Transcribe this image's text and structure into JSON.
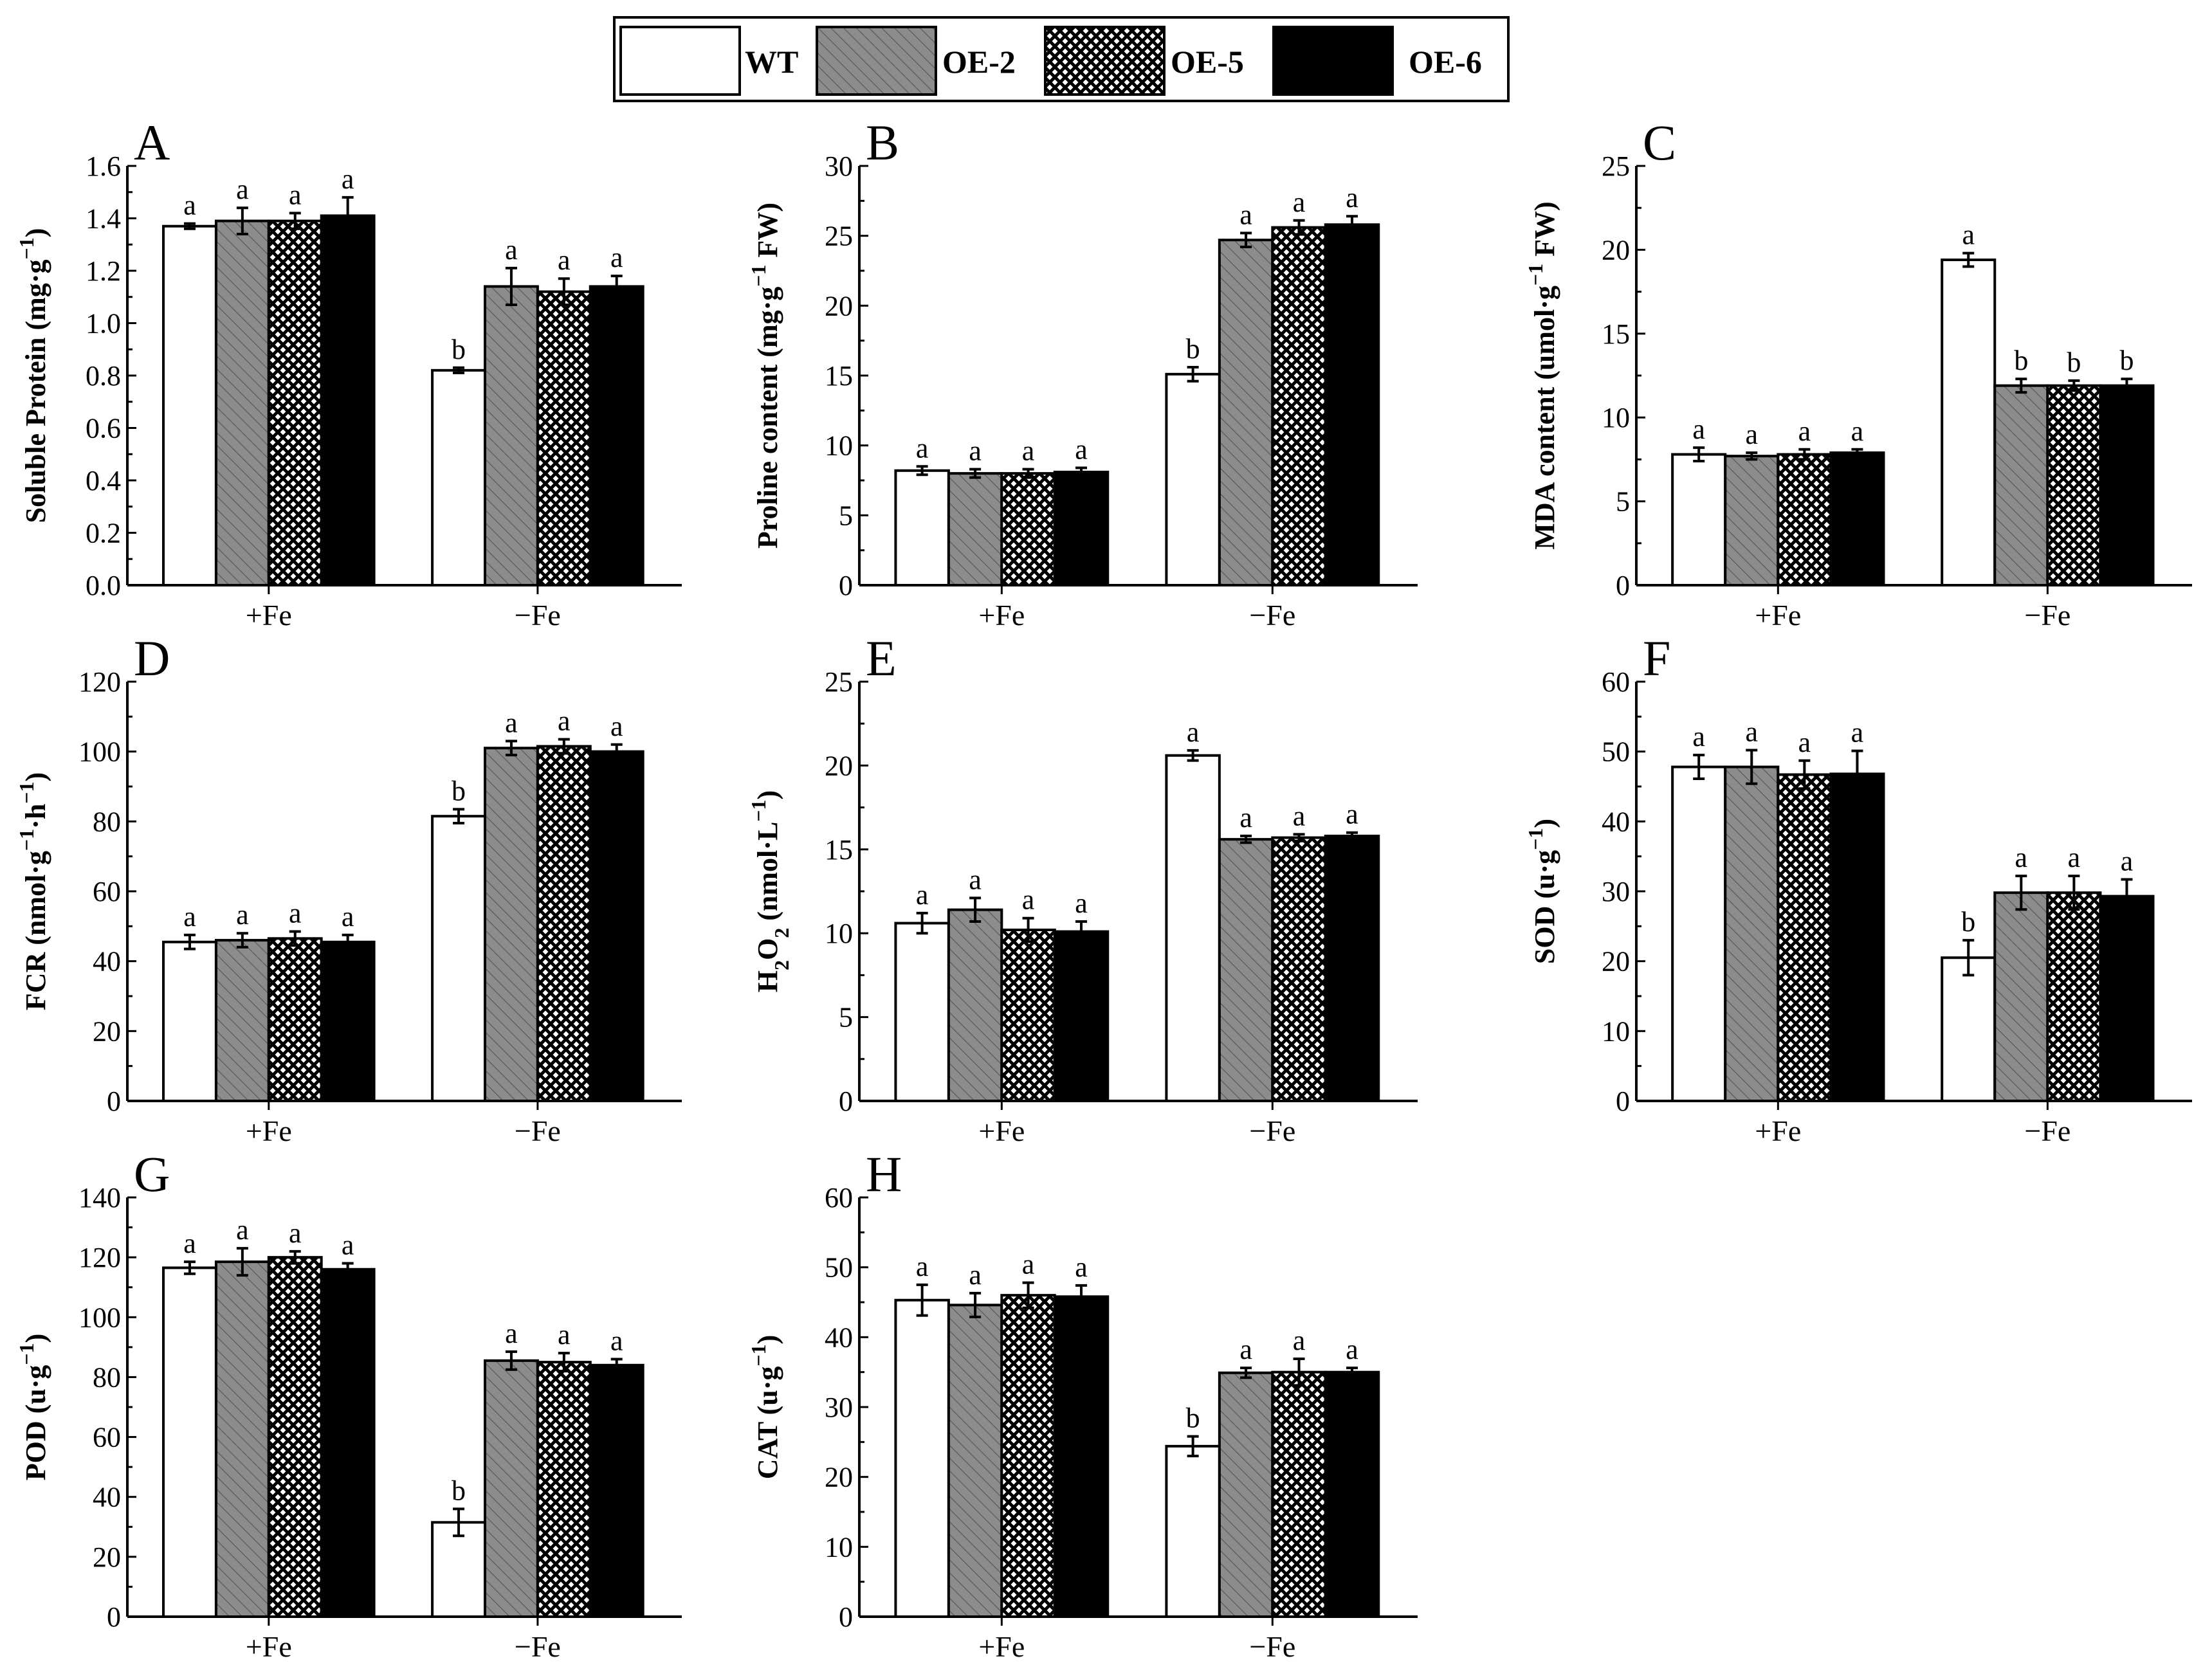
{
  "legend": [
    {
      "name": "WT",
      "pattern": "white"
    },
    {
      "name": "OE-2",
      "pattern": "hatch"
    },
    {
      "name": "OE-5",
      "pattern": "cross"
    },
    {
      "name": "OE-6",
      "pattern": "black"
    }
  ],
  "colors": {
    "axis": "#000000",
    "hatch_fill": "#8c8c8c",
    "solid": "#000000",
    "white": "#ffffff"
  },
  "chart_data": [
    {
      "type": "bar",
      "panel": "A",
      "ylabel": {
        "pre": "Soluble Protein (mg·g",
        "sup": "−1",
        "post": ")"
      },
      "categories": [
        "+Fe",
        "−Fe"
      ],
      "ylim": [
        0,
        1.6
      ],
      "yticks": [
        0.0,
        0.2,
        0.4,
        0.6,
        0.8,
        1.0,
        1.2,
        1.4,
        1.6
      ],
      "yticklabels": [
        "0.0",
        "0.2",
        "0.4",
        "0.6",
        "0.8",
        "1.0",
        "1.2",
        "1.4",
        "1.6"
      ],
      "series": [
        {
          "name": "WT",
          "values": [
            1.37,
            0.82
          ],
          "errors": [
            0.01,
            0.01
          ],
          "letters": [
            "a",
            "b"
          ]
        },
        {
          "name": "OE-2",
          "values": [
            1.39,
            1.14
          ],
          "errors": [
            0.05,
            0.07
          ],
          "letters": [
            "a",
            "a"
          ]
        },
        {
          "name": "OE-5",
          "values": [
            1.39,
            1.12
          ],
          "errors": [
            0.03,
            0.05
          ],
          "letters": [
            "a",
            "a"
          ]
        },
        {
          "name": "OE-6",
          "values": [
            1.41,
            1.14
          ],
          "errors": [
            0.07,
            0.04
          ],
          "letters": [
            "a",
            "a"
          ]
        }
      ]
    },
    {
      "type": "bar",
      "panel": "B",
      "ylabel": {
        "pre": "Proline content (mg·g",
        "sup": "−1",
        "post": " FW)"
      },
      "categories": [
        "+Fe",
        "−Fe"
      ],
      "ylim": [
        0,
        30
      ],
      "yticks": [
        0,
        5,
        10,
        15,
        20,
        25,
        30
      ],
      "yticklabels": [
        "0",
        "5",
        "10",
        "15",
        "20",
        "25",
        "30"
      ],
      "series": [
        {
          "name": "WT",
          "values": [
            8.2,
            15.1
          ],
          "errors": [
            0.3,
            0.5
          ],
          "letters": [
            "a",
            "b"
          ]
        },
        {
          "name": "OE-2",
          "values": [
            8.0,
            24.7
          ],
          "errors": [
            0.3,
            0.5
          ],
          "letters": [
            "a",
            "a"
          ]
        },
        {
          "name": "OE-5",
          "values": [
            8.0,
            25.6
          ],
          "errors": [
            0.3,
            0.5
          ],
          "letters": [
            "a",
            "a"
          ]
        },
        {
          "name": "OE-6",
          "values": [
            8.1,
            25.8
          ],
          "errors": [
            0.3,
            0.6
          ],
          "letters": [
            "a",
            "a"
          ]
        }
      ]
    },
    {
      "type": "bar",
      "panel": "C",
      "ylabel": {
        "pre": "MDA content (umol·g",
        "sup": "−1",
        "post": " FW)"
      },
      "categories": [
        "+Fe",
        "−Fe"
      ],
      "ylim": [
        0,
        25
      ],
      "yticks": [
        0,
        5,
        10,
        15,
        20,
        25
      ],
      "yticklabels": [
        "0",
        "5",
        "10",
        "15",
        "20",
        "25"
      ],
      "series": [
        {
          "name": "WT",
          "values": [
            7.8,
            19.4
          ],
          "errors": [
            0.4,
            0.4
          ],
          "letters": [
            "a",
            "a"
          ]
        },
        {
          "name": "OE-2",
          "values": [
            7.7,
            11.9
          ],
          "errors": [
            0.2,
            0.4
          ],
          "letters": [
            "a",
            "b"
          ]
        },
        {
          "name": "OE-5",
          "values": [
            7.8,
            11.9
          ],
          "errors": [
            0.3,
            0.3
          ],
          "letters": [
            "a",
            "b"
          ]
        },
        {
          "name": "OE-6",
          "values": [
            7.9,
            11.9
          ],
          "errors": [
            0.2,
            0.4
          ],
          "letters": [
            "a",
            "b"
          ]
        }
      ]
    },
    {
      "type": "bar",
      "panel": "D",
      "ylabel": {
        "pre": "FCR (nmol·g",
        "sup": "−1",
        "mid": "·h",
        "sup2": "−1",
        "post": ")"
      },
      "categories": [
        "+Fe",
        "−Fe"
      ],
      "ylim": [
        0,
        120
      ],
      "yticks": [
        0,
        20,
        40,
        60,
        80,
        100,
        120
      ],
      "yticklabels": [
        "0",
        "20",
        "40",
        "60",
        "80",
        "100",
        "120"
      ],
      "series": [
        {
          "name": "WT",
          "values": [
            45.5,
            81.5
          ],
          "errors": [
            2.0,
            2.0
          ],
          "letters": [
            "a",
            "b"
          ]
        },
        {
          "name": "OE-2",
          "values": [
            46.0,
            101.0
          ],
          "errors": [
            2.0,
            2.0
          ],
          "letters": [
            "a",
            "a"
          ]
        },
        {
          "name": "OE-5",
          "values": [
            46.5,
            101.5
          ],
          "errors": [
            2.0,
            2.0
          ],
          "letters": [
            "a",
            "a"
          ]
        },
        {
          "name": "OE-6",
          "values": [
            45.5,
            100.0
          ],
          "errors": [
            2.0,
            2.0
          ],
          "letters": [
            "a",
            "a"
          ]
        }
      ]
    },
    {
      "type": "bar",
      "panel": "E",
      "ylabel": {
        "pre": "H",
        "sub": "2",
        "mid": "O",
        "sub2": "2",
        "post": " (nmol·L",
        "sup": "−1",
        "post2": ")"
      },
      "categories": [
        "+Fe",
        "−Fe"
      ],
      "ylim": [
        0,
        25
      ],
      "yticks": [
        0,
        5,
        10,
        15,
        20,
        25
      ],
      "yticklabels": [
        "0",
        "5",
        "10",
        "15",
        "20",
        "25"
      ],
      "series": [
        {
          "name": "WT",
          "values": [
            10.6,
            20.6
          ],
          "errors": [
            0.6,
            0.3
          ],
          "letters": [
            "a",
            "a"
          ]
        },
        {
          "name": "OE-2",
          "values": [
            11.4,
            15.6
          ],
          "errors": [
            0.7,
            0.2
          ],
          "letters": [
            "a",
            "a"
          ]
        },
        {
          "name": "OE-5",
          "values": [
            10.2,
            15.7
          ],
          "errors": [
            0.7,
            0.2
          ],
          "letters": [
            "a",
            "a"
          ]
        },
        {
          "name": "OE-6",
          "values": [
            10.1,
            15.8
          ],
          "errors": [
            0.6,
            0.2
          ],
          "letters": [
            "a",
            "a"
          ]
        }
      ]
    },
    {
      "type": "bar",
      "panel": "F",
      "ylabel": {
        "pre": "SOD (u·g",
        "sup": "−1",
        "post": ")"
      },
      "categories": [
        "+Fe",
        "−Fe"
      ],
      "ylim": [
        0,
        60
      ],
      "yticks": [
        0,
        10,
        20,
        30,
        40,
        50,
        60
      ],
      "yticklabels": [
        "0",
        "10",
        "20",
        "30",
        "40",
        "50",
        "60"
      ],
      "series": [
        {
          "name": "WT",
          "values": [
            47.8,
            20.5
          ],
          "errors": [
            1.7,
            2.5
          ],
          "letters": [
            "a",
            "b"
          ]
        },
        {
          "name": "OE-2",
          "values": [
            47.8,
            29.8
          ],
          "errors": [
            2.4,
            2.4
          ],
          "letters": [
            "a",
            "a"
          ]
        },
        {
          "name": "OE-5",
          "values": [
            46.7,
            29.8
          ],
          "errors": [
            2.0,
            2.4
          ],
          "letters": [
            "a",
            "a"
          ]
        },
        {
          "name": "OE-6",
          "values": [
            46.8,
            29.3
          ],
          "errors": [
            3.3,
            2.4
          ],
          "letters": [
            "a",
            "a"
          ]
        }
      ]
    },
    {
      "type": "bar",
      "panel": "G",
      "ylabel": {
        "pre": "POD (u·g",
        "sup": "−1",
        "post": ")"
      },
      "categories": [
        "+Fe",
        "−Fe"
      ],
      "ylim": [
        0,
        140
      ],
      "yticks": [
        0,
        20,
        40,
        60,
        80,
        100,
        120,
        140
      ],
      "yticklabels": [
        "0",
        "20",
        "40",
        "60",
        "80",
        "100",
        "120",
        "140"
      ],
      "series": [
        {
          "name": "WT",
          "values": [
            116.5,
            31.5
          ],
          "errors": [
            2.0,
            4.5
          ],
          "letters": [
            "a",
            "b"
          ]
        },
        {
          "name": "OE-2",
          "values": [
            118.5,
            85.5
          ],
          "errors": [
            4.5,
            3.0
          ],
          "letters": [
            "a",
            "a"
          ]
        },
        {
          "name": "OE-5",
          "values": [
            120.0,
            85.0
          ],
          "errors": [
            2.0,
            3.0
          ],
          "letters": [
            "a",
            "a"
          ]
        },
        {
          "name": "OE-6",
          "values": [
            116.0,
            84.0
          ],
          "errors": [
            2.0,
            2.0
          ],
          "letters": [
            "a",
            "a"
          ]
        }
      ]
    },
    {
      "type": "bar",
      "panel": "H",
      "ylabel": {
        "pre": "CAT (u·g",
        "sup": "−1",
        "post": ")"
      },
      "categories": [
        "+Fe",
        "−Fe"
      ],
      "ylim": [
        0,
        60
      ],
      "yticks": [
        0,
        10,
        20,
        30,
        40,
        50,
        60
      ],
      "yticklabels": [
        "0",
        "10",
        "20",
        "30",
        "40",
        "50",
        "60"
      ],
      "series": [
        {
          "name": "WT",
          "values": [
            45.3,
            24.4
          ],
          "errors": [
            2.2,
            1.4
          ],
          "letters": [
            "a",
            "b"
          ]
        },
        {
          "name": "OE-2",
          "values": [
            44.6,
            34.9
          ],
          "errors": [
            1.7,
            0.7
          ],
          "letters": [
            "a",
            "a"
          ]
        },
        {
          "name": "OE-5",
          "values": [
            46.0,
            35.0
          ],
          "errors": [
            1.8,
            1.9
          ],
          "letters": [
            "a",
            "a"
          ]
        },
        {
          "name": "OE-6",
          "values": [
            45.8,
            35.0
          ],
          "errors": [
            1.6,
            0.6
          ],
          "letters": [
            "a",
            "a"
          ]
        }
      ]
    }
  ]
}
